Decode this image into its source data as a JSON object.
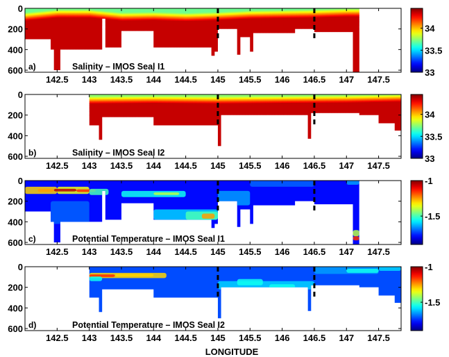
{
  "figure": {
    "xlabel": "LONGITUDE"
  },
  "chart_data": [
    {
      "type": "heatmap",
      "panel_letter": "a)",
      "title": "Salinity – IMOS Seal I1",
      "xlim": [
        142.0,
        147.85
      ],
      "ylim": [
        620,
        0
      ],
      "xticks": [
        142.5,
        143,
        143.5,
        144,
        144.5,
        145,
        145.5,
        146,
        146.5,
        147,
        147.5
      ],
      "xtick_labels": [
        "142.5",
        "143",
        "143.5",
        "144",
        "144.5",
        "145",
        "145.5",
        "146",
        "146.5",
        "147",
        "147.5"
      ],
      "yticks": [
        0,
        200,
        400,
        600
      ],
      "ytick_labels": [
        "0",
        "200",
        "400",
        "600"
      ],
      "clim": [
        33,
        34.45
      ],
      "cbar_ticks": [
        33,
        33.5,
        34
      ],
      "cbar_tick_labels": [
        "33",
        "33.5",
        "34"
      ],
      "dashed_lines": [
        145,
        146.5
      ],
      "colormap": "jet",
      "x_start": 142.0,
      "x_end": 147.2,
      "depth_profile": [
        [
          142.0,
          300
        ],
        [
          142.4,
          300
        ],
        [
          142.4,
          400
        ],
        [
          142.45,
          400
        ],
        [
          142.45,
          600
        ],
        [
          142.55,
          600
        ],
        [
          142.55,
          400
        ],
        [
          143.2,
          400
        ],
        [
          143.2,
          100
        ],
        [
          143.25,
          100
        ],
        [
          143.25,
          380
        ],
        [
          143.5,
          380
        ],
        [
          143.5,
          220
        ],
        [
          144.0,
          220
        ],
        [
          144.0,
          380
        ],
        [
          144.9,
          380
        ],
        [
          144.9,
          460
        ],
        [
          144.95,
          460
        ],
        [
          144.95,
          420
        ],
        [
          145.0,
          420
        ],
        [
          145.0,
          200
        ],
        [
          145.3,
          200
        ],
        [
          145.3,
          450
        ],
        [
          145.35,
          450
        ],
        [
          145.35,
          280
        ],
        [
          145.5,
          280
        ],
        [
          145.5,
          420
        ],
        [
          145.55,
          420
        ],
        [
          145.55,
          240
        ],
        [
          146.2,
          240
        ],
        [
          146.2,
          200
        ],
        [
          146.5,
          200
        ],
        [
          146.5,
          230
        ],
        [
          147.1,
          230
        ],
        [
          147.1,
          620
        ],
        [
          147.2,
          620
        ]
      ],
      "field": {
        "surface_value": 33.7,
        "surface_depth": 30,
        "halocline_depth": 110,
        "deep_value": 34.35,
        "offset": [
          [
            142.0,
            10
          ],
          [
            142.5,
            -20
          ],
          [
            143.0,
            -20
          ],
          [
            143.5,
            10
          ],
          [
            144.0,
            5
          ],
          [
            144.5,
            15
          ],
          [
            145.0,
            5
          ],
          [
            145.5,
            -10
          ],
          [
            146.0,
            -15
          ],
          [
            146.5,
            -20
          ],
          [
            147.0,
            -30
          ],
          [
            147.2,
            -30
          ]
        ],
        "cells": []
      }
    },
    {
      "type": "heatmap",
      "panel_letter": "b)",
      "title": "Salinity – IMOS Seal I2",
      "xlim": [
        142.0,
        147.85
      ],
      "ylim": [
        620,
        0
      ],
      "xticks": [
        142.5,
        143,
        143.5,
        144,
        144.5,
        145,
        145.5,
        146,
        146.5,
        147,
        147.5
      ],
      "xtick_labels": [
        "142.5",
        "143",
        "143.5",
        "144",
        "144.5",
        "145",
        "145.5",
        "146",
        "146.5",
        "147",
        "147.5"
      ],
      "yticks": [
        0,
        200,
        400,
        600
      ],
      "ytick_labels": [
        "0",
        "200",
        "400",
        "600"
      ],
      "clim": [
        33,
        34.45
      ],
      "cbar_ticks": [
        33,
        33.5,
        34
      ],
      "cbar_tick_labels": [
        "33",
        "33.5",
        "34"
      ],
      "dashed_lines": [
        145,
        146.5
      ],
      "colormap": "jet",
      "x_start": 143.0,
      "x_end": 147.85,
      "depth_profile": [
        [
          143.0,
          300
        ],
        [
          143.15,
          300
        ],
        [
          143.15,
          440
        ],
        [
          143.2,
          440
        ],
        [
          143.2,
          220
        ],
        [
          144.0,
          220
        ],
        [
          144.0,
          300
        ],
        [
          145.0,
          300
        ],
        [
          145.0,
          500
        ],
        [
          145.05,
          500
        ],
        [
          145.05,
          200
        ],
        [
          146.4,
          200
        ],
        [
          146.4,
          430
        ],
        [
          146.45,
          430
        ],
        [
          146.45,
          180
        ],
        [
          147.2,
          180
        ],
        [
          147.2,
          200
        ],
        [
          147.5,
          200
        ],
        [
          147.5,
          280
        ],
        [
          147.75,
          280
        ],
        [
          147.75,
          350
        ],
        [
          147.85,
          350
        ]
      ],
      "field": {
        "surface_value": 33.75,
        "surface_depth": 20,
        "halocline_depth": 90,
        "deep_value": 34.35,
        "offset": [
          [
            143.0,
            0
          ],
          [
            144.0,
            -5
          ],
          [
            145.0,
            0
          ],
          [
            146.0,
            -5
          ],
          [
            147.0,
            -10
          ],
          [
            147.85,
            -20
          ]
        ],
        "cells": []
      }
    },
    {
      "type": "heatmap",
      "panel_letter": "c)",
      "title": "Potential Temperature – IMOS Seal I1",
      "xlim": [
        142.0,
        147.85
      ],
      "ylim": [
        620,
        0
      ],
      "xticks": [
        142.5,
        143,
        143.5,
        144,
        144.5,
        145,
        145.5,
        146,
        146.5,
        147,
        147.5
      ],
      "xtick_labels": [
        "142.5",
        "143",
        "143.5",
        "144",
        "144.5",
        "145",
        "145.5",
        "146",
        "146.5",
        "147",
        "147.5"
      ],
      "yticks": [
        0,
        200,
        400,
        600
      ],
      "ytick_labels": [
        "0",
        "200",
        "400",
        "600"
      ],
      "clim": [
        -1.9,
        -1.0
      ],
      "cbar_ticks": [
        -1.5,
        -1
      ],
      "cbar_tick_labels": [
        "-1.5",
        "-1"
      ],
      "dashed_lines": [
        145,
        146.5
      ],
      "colormap": "jet",
      "x_start": 142.0,
      "x_end": 147.2,
      "depth_profile": [
        [
          142.0,
          300
        ],
        [
          142.4,
          300
        ],
        [
          142.4,
          400
        ],
        [
          142.45,
          400
        ],
        [
          142.45,
          600
        ],
        [
          142.55,
          600
        ],
        [
          142.55,
          400
        ],
        [
          143.2,
          400
        ],
        [
          143.2,
          100
        ],
        [
          143.25,
          100
        ],
        [
          143.25,
          380
        ],
        [
          143.5,
          380
        ],
        [
          143.5,
          220
        ],
        [
          144.0,
          220
        ],
        [
          144.0,
          380
        ],
        [
          144.9,
          380
        ],
        [
          144.9,
          460
        ],
        [
          144.95,
          460
        ],
        [
          144.95,
          420
        ],
        [
          145.0,
          420
        ],
        [
          145.0,
          200
        ],
        [
          145.3,
          200
        ],
        [
          145.3,
          450
        ],
        [
          145.35,
          450
        ],
        [
          145.35,
          280
        ],
        [
          145.5,
          280
        ],
        [
          145.5,
          420
        ],
        [
          145.55,
          420
        ],
        [
          145.55,
          240
        ],
        [
          146.2,
          240
        ],
        [
          146.2,
          200
        ],
        [
          146.5,
          200
        ],
        [
          146.5,
          230
        ],
        [
          147.1,
          230
        ],
        [
          147.1,
          620
        ],
        [
          147.2,
          620
        ]
      ],
      "field": {
        "base": -1.78,
        "cells": [
          [
            142.0,
            142.5,
            60,
            130,
            -1.3
          ],
          [
            142.5,
            143.0,
            60,
            130,
            -1.35
          ],
          [
            142.45,
            142.8,
            80,
            105,
            -1.05
          ],
          [
            142.8,
            143.1,
            85,
            110,
            -1.15
          ],
          [
            142.2,
            142.45,
            80,
            110,
            -1.25
          ],
          [
            143.0,
            143.3,
            80,
            140,
            -1.5
          ],
          [
            143.5,
            144.5,
            100,
            160,
            -1.55
          ],
          [
            144.0,
            144.4,
            115,
            140,
            -1.4
          ],
          [
            142.4,
            143.0,
            200,
            420,
            -1.7
          ],
          [
            144.0,
            145.0,
            280,
            380,
            -1.6
          ],
          [
            144.5,
            145.0,
            300,
            380,
            -1.5
          ],
          [
            144.75,
            144.95,
            320,
            370,
            -1.25
          ],
          [
            145.0,
            145.5,
            100,
            240,
            -1.65
          ],
          [
            145.5,
            146.5,
            0,
            60,
            -1.7
          ],
          [
            147.0,
            147.2,
            0,
            40,
            -1.65
          ],
          [
            147.1,
            147.2,
            480,
            540,
            -1.4
          ],
          [
            147.1,
            147.2,
            540,
            580,
            -1.15
          ]
        ]
      }
    },
    {
      "type": "heatmap",
      "panel_letter": "d)",
      "title": "Potential Temperature – IMOS Seal I2",
      "xlim": [
        142.0,
        147.85
      ],
      "ylim": [
        620,
        0
      ],
      "xticks": [
        142.5,
        143,
        143.5,
        144,
        144.5,
        145,
        145.5,
        146,
        146.5,
        147,
        147.5
      ],
      "xtick_labels": [
        "142.5",
        "143",
        "143.5",
        "144",
        "144.5",
        "145",
        "145.5",
        "146",
        "146.5",
        "147",
        "147.5"
      ],
      "yticks": [
        0,
        200,
        400,
        600
      ],
      "ytick_labels": [
        "0",
        "200",
        "400",
        "600"
      ],
      "clim": [
        -1.9,
        -1.0
      ],
      "cbar_ticks": [
        -1.5,
        -1
      ],
      "cbar_tick_labels": [
        "-1.5",
        "-1"
      ],
      "dashed_lines": [
        145,
        146.5
      ],
      "colormap": "jet",
      "x_start": 143.0,
      "x_end": 147.85,
      "depth_profile": [
        [
          143.0,
          300
        ],
        [
          143.15,
          300
        ],
        [
          143.15,
          440
        ],
        [
          143.2,
          440
        ],
        [
          143.2,
          220
        ],
        [
          144.0,
          220
        ],
        [
          144.0,
          300
        ],
        [
          145.0,
          300
        ],
        [
          145.0,
          500
        ],
        [
          145.05,
          500
        ],
        [
          145.05,
          200
        ],
        [
          146.4,
          200
        ],
        [
          146.4,
          430
        ],
        [
          146.45,
          430
        ],
        [
          146.45,
          180
        ],
        [
          147.2,
          180
        ],
        [
          147.2,
          200
        ],
        [
          147.5,
          200
        ],
        [
          147.5,
          280
        ],
        [
          147.75,
          280
        ],
        [
          147.75,
          350
        ],
        [
          147.85,
          350
        ]
      ],
      "field": {
        "base": -1.72,
        "cells": [
          [
            143.0,
            144.2,
            60,
            110,
            -1.3
          ],
          [
            143.0,
            143.4,
            75,
            100,
            -1.15
          ],
          [
            143.4,
            144.0,
            70,
            95,
            -1.3
          ],
          [
            143.0,
            143.2,
            95,
            140,
            -1.55
          ],
          [
            145.0,
            146.5,
            140,
            220,
            -1.6
          ],
          [
            145.3,
            145.7,
            120,
            180,
            -1.55
          ],
          [
            145.8,
            146.2,
            170,
            220,
            -1.55
          ],
          [
            146.5,
            147.5,
            0,
            70,
            -1.65
          ],
          [
            147.0,
            147.5,
            20,
            60,
            -1.55
          ],
          [
            147.5,
            147.85,
            0,
            40,
            -1.6
          ]
        ]
      }
    }
  ]
}
